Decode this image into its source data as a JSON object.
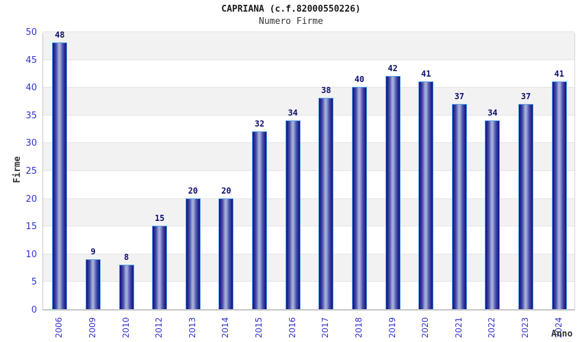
{
  "title": "CAPRIANA (c.f.82000550226)",
  "subtitle": "Numero Firme",
  "chart_data": {
    "type": "bar",
    "title": "CAPRIANA (c.f.82000550226)",
    "subtitle": "Numero Firme",
    "categories": [
      "2006",
      "2009",
      "2010",
      "2012",
      "2013",
      "2014",
      "2015",
      "2016",
      "2017",
      "2018",
      "2019",
      "2020",
      "2021",
      "2022",
      "2023",
      "2024"
    ],
    "values": [
      48,
      9,
      8,
      15,
      20,
      20,
      32,
      34,
      38,
      40,
      42,
      41,
      37,
      34,
      37,
      41
    ],
    "xlabel": "Anno",
    "ylabel": "Firme",
    "ylim": [
      0,
      50
    ],
    "ytick_step": 5,
    "yticks": [
      0,
      5,
      10,
      15,
      20,
      25,
      30,
      35,
      40,
      45,
      50
    ],
    "grid": "horizontal-alternating-bands",
    "legend": "none",
    "bar_value_labels": true
  },
  "colors": {
    "bar_edge_dark": "#141478",
    "bar_center_light": "#aab2dc",
    "bar_border": "#54a5ea",
    "tick_label": "#3232c8",
    "value_label": "#10106e",
    "band_gray": "#f2f2f2",
    "band_white": "#ffffff",
    "axis_line": "#c6c6c6",
    "title_color": "#1a1a1a",
    "axis_title_color": "#333333"
  }
}
